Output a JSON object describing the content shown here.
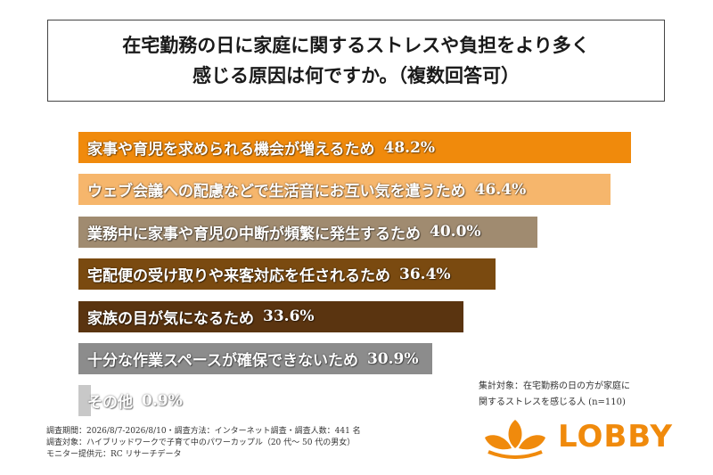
{
  "title": {
    "line1": "在宅勤務の日に家庭に関するストレスや負担をより多く",
    "line2": "感じる原因は何ですか。（複数回答可）"
  },
  "chart_data": {
    "type": "bar",
    "orientation": "horizontal",
    "categories": [
      "家事や育児を求められる機会が増えるため",
      "ウェブ会議への配慮などで生活音にお互い気を遣うため",
      "業務中に家事や育児の中断が頻繁に発生するため",
      "宅配便の受け取りや来客対応を任されるため",
      "家族の目が気になるため",
      "十分な作業スペースが確保できないため",
      "その他"
    ],
    "values": [
      48.2,
      46.4,
      40.0,
      36.4,
      33.6,
      30.9,
      0.9
    ],
    "value_labels": [
      "48.2%",
      "46.4%",
      "40.0%",
      "36.4%",
      "33.6%",
      "30.9%",
      "0.9%"
    ],
    "colors": [
      "#f08a0c",
      "#f6b66c",
      "#a08b70",
      "#7a4a10",
      "#5a3410",
      "#8c8c8c",
      "#c8c8c8"
    ]
  },
  "note": {
    "line1": "集計対象：在宅勤務の日の方が家庭に",
    "line2": "関するストレスを感じる人 (n=110)"
  },
  "footer": {
    "line1": "調査期間：2026/8/7-2026/8/10・調査方法：インターネット調査・調査人数：441 名",
    "line2": "調査対象：ハイブリッドワークで子育て中のパワーカップル（20 代～ 50 代の男女）",
    "line3": "モニター提供元：RC リサーチデータ"
  },
  "logo": {
    "text": "LOBBY",
    "icon": "lobby-leaf-icon",
    "color": "#f08a0c"
  }
}
